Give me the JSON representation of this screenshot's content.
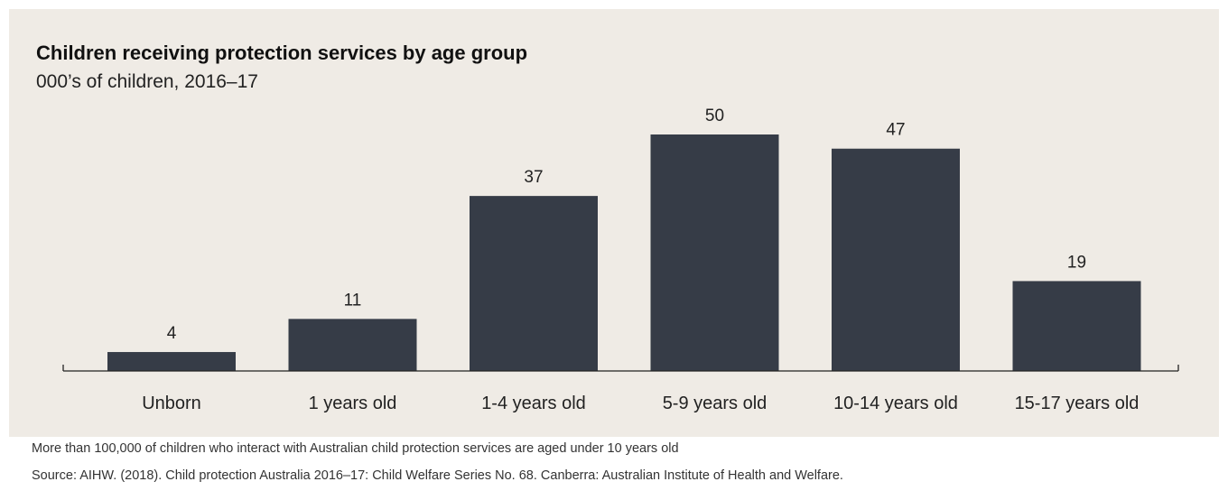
{
  "chart_data": {
    "type": "bar",
    "title": "Children receiving protection services by age group",
    "subtitle": "000’s of children, 2016–17",
    "categories": [
      "Unborn",
      "1 years old",
      "1-4 years old",
      "5-9 years old",
      "10-14 years old",
      "15-17 years old"
    ],
    "values": [
      4,
      11,
      37,
      50,
      47,
      19
    ],
    "data_labels": [
      "4",
      "11",
      "37",
      "50",
      "47",
      "19"
    ],
    "xlabel": "",
    "ylabel": "",
    "ylim": [
      0,
      50
    ],
    "grid": false,
    "legend": "none",
    "bar_color": "#363c47",
    "background_color": "#efebe5"
  },
  "footnotes": {
    "note": "More than 100,000 of children who interact with Australian child protection services are aged under 10 years old",
    "source": "Source: AIHW. (2018). Child protection Australia 2016–17: Child Welfare Series No. 68. Canberra: Australian Institute of Health and Welfare."
  }
}
